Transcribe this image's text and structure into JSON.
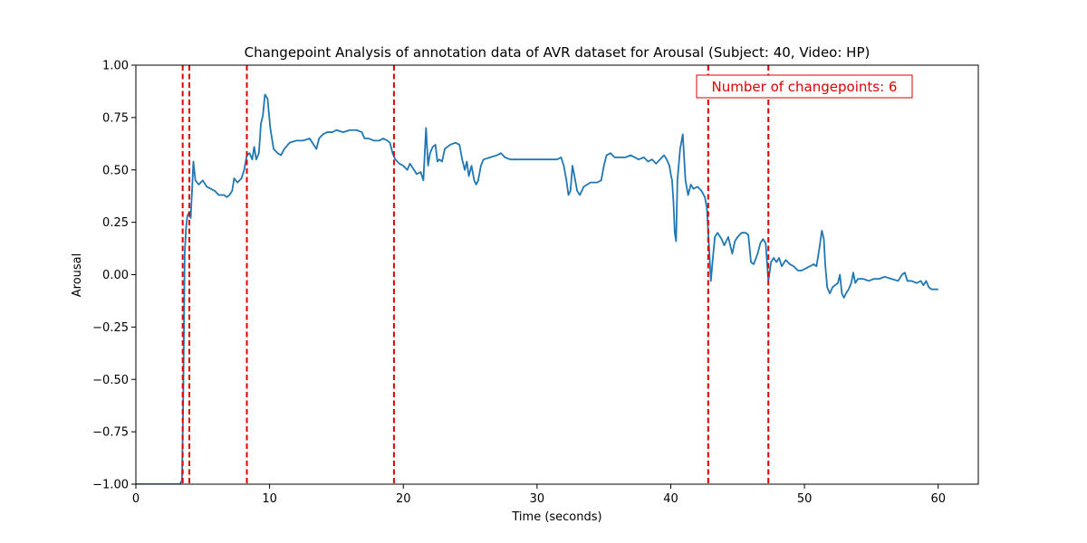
{
  "chart_data": {
    "type": "line",
    "title": "Changepoint Analysis of annotation data of AVR dataset for Arousal (Subject: 40, Video: HP)",
    "xlabel": "Time (seconds)",
    "ylabel": "Arousal",
    "xlim": [
      0,
      63
    ],
    "ylim": [
      -1.0,
      1.0
    ],
    "x_ticks": [
      0,
      10,
      20,
      30,
      40,
      50,
      60
    ],
    "x_tick_labels": [
      "0",
      "10",
      "20",
      "30",
      "40",
      "50",
      "60"
    ],
    "y_ticks": [
      -1.0,
      -0.75,
      -0.5,
      -0.25,
      0.0,
      0.25,
      0.5,
      0.75,
      1.0
    ],
    "y_tick_labels": [
      "−1.00",
      "−0.75",
      "−0.50",
      "−0.25",
      "0.00",
      "0.25",
      "0.50",
      "0.75",
      "1.00"
    ],
    "grid": false,
    "series": [
      {
        "color": "#1f77b4",
        "points": [
          [
            0,
            -1.0
          ],
          [
            3.3,
            -1.0
          ],
          [
            3.45,
            -0.98
          ],
          [
            3.55,
            -0.55
          ],
          [
            3.65,
            0.1
          ],
          [
            3.75,
            0.22
          ],
          [
            3.85,
            0.28
          ],
          [
            4.0,
            0.3
          ],
          [
            4.1,
            0.27
          ],
          [
            4.2,
            0.4
          ],
          [
            4.3,
            0.54
          ],
          [
            4.45,
            0.45
          ],
          [
            4.7,
            0.43
          ],
          [
            5.0,
            0.45
          ],
          [
            5.3,
            0.42
          ],
          [
            5.6,
            0.41
          ],
          [
            5.9,
            0.4
          ],
          [
            6.2,
            0.38
          ],
          [
            6.6,
            0.38
          ],
          [
            6.8,
            0.37
          ],
          [
            7.0,
            0.38
          ],
          [
            7.2,
            0.4
          ],
          [
            7.35,
            0.46
          ],
          [
            7.6,
            0.44
          ],
          [
            7.9,
            0.46
          ],
          [
            8.1,
            0.5
          ],
          [
            8.3,
            0.57
          ],
          [
            8.5,
            0.58
          ],
          [
            8.7,
            0.55
          ],
          [
            8.85,
            0.61
          ],
          [
            9.0,
            0.55
          ],
          [
            9.2,
            0.58
          ],
          [
            9.35,
            0.72
          ],
          [
            9.5,
            0.76
          ],
          [
            9.65,
            0.86
          ],
          [
            9.85,
            0.84
          ],
          [
            10.05,
            0.7
          ],
          [
            10.3,
            0.6
          ],
          [
            10.6,
            0.58
          ],
          [
            10.85,
            0.57
          ],
          [
            11.1,
            0.6
          ],
          [
            11.5,
            0.63
          ],
          [
            12.0,
            0.64
          ],
          [
            12.5,
            0.64
          ],
          [
            13.0,
            0.65
          ],
          [
            13.3,
            0.62
          ],
          [
            13.5,
            0.6
          ],
          [
            13.7,
            0.65
          ],
          [
            14.0,
            0.67
          ],
          [
            14.3,
            0.68
          ],
          [
            14.7,
            0.68
          ],
          [
            15.0,
            0.69
          ],
          [
            15.5,
            0.68
          ],
          [
            16.0,
            0.69
          ],
          [
            16.5,
            0.69
          ],
          [
            16.9,
            0.68
          ],
          [
            17.1,
            0.65
          ],
          [
            17.4,
            0.65
          ],
          [
            17.8,
            0.64
          ],
          [
            18.2,
            0.64
          ],
          [
            18.5,
            0.65
          ],
          [
            18.8,
            0.64
          ],
          [
            19.0,
            0.63
          ],
          [
            19.2,
            0.58
          ],
          [
            19.4,
            0.55
          ],
          [
            19.7,
            0.53
          ],
          [
            20.0,
            0.52
          ],
          [
            20.3,
            0.5
          ],
          [
            20.5,
            0.53
          ],
          [
            20.8,
            0.5
          ],
          [
            21.0,
            0.48
          ],
          [
            21.3,
            0.49
          ],
          [
            21.5,
            0.45
          ],
          [
            21.7,
            0.7
          ],
          [
            21.85,
            0.52
          ],
          [
            22.0,
            0.58
          ],
          [
            22.2,
            0.61
          ],
          [
            22.4,
            0.62
          ],
          [
            22.55,
            0.54
          ],
          [
            22.7,
            0.55
          ],
          [
            22.9,
            0.54
          ],
          [
            23.1,
            0.6
          ],
          [
            23.5,
            0.62
          ],
          [
            23.9,
            0.63
          ],
          [
            24.2,
            0.62
          ],
          [
            24.4,
            0.55
          ],
          [
            24.6,
            0.5
          ],
          [
            24.75,
            0.54
          ],
          [
            24.9,
            0.47
          ],
          [
            25.1,
            0.52
          ],
          [
            25.3,
            0.45
          ],
          [
            25.45,
            0.43
          ],
          [
            25.6,
            0.45
          ],
          [
            25.8,
            0.52
          ],
          [
            26.0,
            0.55
          ],
          [
            26.5,
            0.56
          ],
          [
            27.0,
            0.57
          ],
          [
            27.3,
            0.58
          ],
          [
            27.6,
            0.56
          ],
          [
            28.0,
            0.55
          ],
          [
            28.5,
            0.55
          ],
          [
            29.0,
            0.55
          ],
          [
            30.0,
            0.55
          ],
          [
            31.0,
            0.55
          ],
          [
            31.5,
            0.55
          ],
          [
            31.8,
            0.56
          ],
          [
            32.0,
            0.52
          ],
          [
            32.2,
            0.45
          ],
          [
            32.35,
            0.38
          ],
          [
            32.5,
            0.4
          ],
          [
            32.65,
            0.52
          ],
          [
            32.8,
            0.47
          ],
          [
            33.0,
            0.4
          ],
          [
            33.2,
            0.38
          ],
          [
            33.5,
            0.42
          ],
          [
            34.0,
            0.44
          ],
          [
            34.5,
            0.44
          ],
          [
            34.8,
            0.45
          ],
          [
            35.0,
            0.52
          ],
          [
            35.2,
            0.57
          ],
          [
            35.5,
            0.58
          ],
          [
            35.8,
            0.56
          ],
          [
            36.2,
            0.56
          ],
          [
            36.6,
            0.56
          ],
          [
            37.0,
            0.57
          ],
          [
            37.3,
            0.56
          ],
          [
            37.6,
            0.55
          ],
          [
            38.0,
            0.56
          ],
          [
            38.3,
            0.54
          ],
          [
            38.6,
            0.55
          ],
          [
            38.9,
            0.53
          ],
          [
            39.2,
            0.55
          ],
          [
            39.5,
            0.57
          ],
          [
            39.7,
            0.55
          ],
          [
            39.9,
            0.52
          ],
          [
            40.0,
            0.48
          ],
          [
            40.1,
            0.45
          ],
          [
            40.2,
            0.35
          ],
          [
            40.3,
            0.2
          ],
          [
            40.4,
            0.16
          ],
          [
            40.5,
            0.45
          ],
          [
            40.7,
            0.6
          ],
          [
            40.9,
            0.67
          ],
          [
            41.1,
            0.45
          ],
          [
            41.3,
            0.38
          ],
          [
            41.5,
            0.43
          ],
          [
            41.7,
            0.41
          ],
          [
            42.0,
            0.42
          ],
          [
            42.3,
            0.4
          ],
          [
            42.55,
            0.37
          ],
          [
            42.7,
            0.32
          ],
          [
            42.85,
            0.15
          ],
          [
            43.0,
            -0.03
          ],
          [
            43.15,
            0.08
          ],
          [
            43.3,
            0.18
          ],
          [
            43.5,
            0.2
          ],
          [
            43.8,
            0.17
          ],
          [
            44.0,
            0.14
          ],
          [
            44.3,
            0.18
          ],
          [
            44.6,
            0.1
          ],
          [
            44.8,
            0.16
          ],
          [
            45.0,
            0.18
          ],
          [
            45.3,
            0.2
          ],
          [
            45.6,
            0.2
          ],
          [
            45.8,
            0.19
          ],
          [
            46.0,
            0.06
          ],
          [
            46.2,
            0.05
          ],
          [
            46.5,
            0.1
          ],
          [
            46.7,
            0.15
          ],
          [
            46.9,
            0.17
          ],
          [
            47.1,
            0.15
          ],
          [
            47.3,
            -0.03
          ],
          [
            47.5,
            0.06
          ],
          [
            47.7,
            0.08
          ],
          [
            47.9,
            0.06
          ],
          [
            48.1,
            0.08
          ],
          [
            48.3,
            0.04
          ],
          [
            48.6,
            0.07
          ],
          [
            48.9,
            0.05
          ],
          [
            49.2,
            0.04
          ],
          [
            49.5,
            0.02
          ],
          [
            49.8,
            0.02
          ],
          [
            50.1,
            0.03
          ],
          [
            50.4,
            0.04
          ],
          [
            50.7,
            0.05
          ],
          [
            50.9,
            0.04
          ],
          [
            51.1,
            0.12
          ],
          [
            51.3,
            0.21
          ],
          [
            51.45,
            0.17
          ],
          [
            51.55,
            0.05
          ],
          [
            51.7,
            -0.06
          ],
          [
            51.9,
            -0.09
          ],
          [
            52.1,
            -0.06
          ],
          [
            52.3,
            -0.05
          ],
          [
            52.5,
            -0.04
          ],
          [
            52.65,
            0.0
          ],
          [
            52.8,
            -0.09
          ],
          [
            52.95,
            -0.11
          ],
          [
            53.1,
            -0.09
          ],
          [
            53.3,
            -0.07
          ],
          [
            53.5,
            -0.04
          ],
          [
            53.65,
            0.01
          ],
          [
            53.8,
            -0.04
          ],
          [
            54.0,
            -0.02
          ],
          [
            54.4,
            -0.02
          ],
          [
            54.8,
            -0.03
          ],
          [
            55.2,
            -0.02
          ],
          [
            55.6,
            -0.02
          ],
          [
            56.0,
            -0.01
          ],
          [
            56.5,
            -0.02
          ],
          [
            57.0,
            -0.03
          ],
          [
            57.3,
            0.0
          ],
          [
            57.5,
            0.01
          ],
          [
            57.7,
            -0.03
          ],
          [
            58.0,
            -0.03
          ],
          [
            58.4,
            -0.04
          ],
          [
            58.7,
            -0.03
          ],
          [
            58.9,
            -0.05
          ],
          [
            59.1,
            -0.03
          ],
          [
            59.3,
            -0.06
          ],
          [
            59.5,
            -0.07
          ],
          [
            59.7,
            -0.07
          ],
          [
            60.0,
            -0.07
          ]
        ]
      }
    ],
    "changepoints": [
      3.5,
      4.0,
      8.3,
      19.3,
      42.8,
      47.3
    ],
    "changepoint_color": "#e00000",
    "annotation": {
      "text": "Number of changepoints: 6",
      "placement": "top-right",
      "color": "#e00000"
    }
  }
}
